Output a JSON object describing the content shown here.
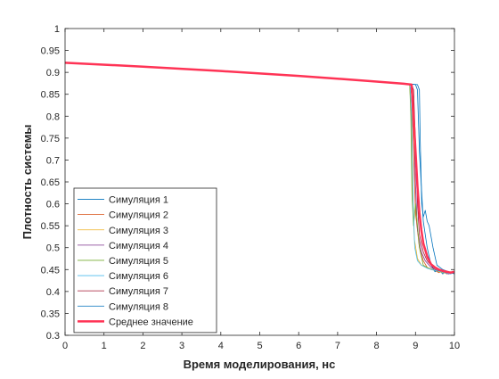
{
  "chart_data": {
    "type": "line",
    "title": "",
    "xlabel": "Время моделирования, нс",
    "ylabel": "Плотность системы",
    "xlim": [
      0,
      10
    ],
    "ylim": [
      0.3,
      1.0
    ],
    "xticks": [
      0,
      1,
      2,
      3,
      4,
      5,
      6,
      7,
      8,
      9,
      10
    ],
    "yticks": [
      0.3,
      0.35,
      0.4,
      0.45,
      0.5,
      0.55,
      0.6,
      0.65,
      0.7,
      0.75,
      0.8,
      0.85,
      0.9,
      0.95,
      1
    ],
    "ytick_labels": [
      "0.3",
      "0.35",
      "0.4",
      "0.45",
      "0.5",
      "0.55",
      "0.6",
      "0.65",
      "0.7",
      "0.75",
      "0.8",
      "0.85",
      "0.9",
      "0.95",
      "1"
    ],
    "grid": false,
    "legend_position": "bottom-left",
    "series": [
      {
        "name": "Симуляция 1",
        "color": "#0072BD",
        "x": [
          0,
          2,
          4,
          6,
          8,
          8.9,
          9.0,
          9.05,
          9.1,
          9.2,
          9.3,
          9.4,
          9.5,
          9.6,
          9.7,
          9.8,
          9.9,
          10
        ],
        "y": [
          0.922,
          0.913,
          0.903,
          0.892,
          0.879,
          0.873,
          0.872,
          0.86,
          0.72,
          0.56,
          0.5,
          0.46,
          0.445,
          0.45,
          0.44,
          0.447,
          0.44,
          0.445
        ]
      },
      {
        "name": "Симуляция 2",
        "color": "#D95319",
        "x": [
          0,
          2,
          4,
          6,
          8,
          8.85,
          8.9,
          8.95,
          9.0,
          9.1,
          9.2,
          9.3,
          9.4,
          9.5,
          9.6,
          9.7,
          9.8,
          9.9,
          10
        ],
        "y": [
          0.922,
          0.913,
          0.903,
          0.892,
          0.879,
          0.873,
          0.85,
          0.72,
          0.58,
          0.5,
          0.47,
          0.455,
          0.45,
          0.448,
          0.443,
          0.447,
          0.44,
          0.445,
          0.442
        ]
      },
      {
        "name": "Симуляция 3",
        "color": "#EDB120",
        "x": [
          0,
          2,
          4,
          6,
          8,
          8.85,
          8.88,
          8.92,
          8.97,
          9.05,
          9.15,
          9.3,
          9.45,
          9.6,
          9.75,
          9.9,
          10
        ],
        "y": [
          0.922,
          0.913,
          0.903,
          0.892,
          0.879,
          0.873,
          0.82,
          0.64,
          0.52,
          0.475,
          0.46,
          0.455,
          0.45,
          0.445,
          0.442,
          0.445,
          0.44
        ]
      },
      {
        "name": "Симуляция 4",
        "color": "#7E2F8E",
        "x": [
          0,
          2,
          4,
          6,
          8,
          8.9,
          8.95,
          9.0,
          9.05,
          9.15,
          9.25,
          9.4,
          9.55,
          9.7,
          9.85,
          10
        ],
        "y": [
          0.922,
          0.913,
          0.903,
          0.892,
          0.879,
          0.873,
          0.8,
          0.64,
          0.54,
          0.49,
          0.47,
          0.455,
          0.448,
          0.445,
          0.44,
          0.443
        ]
      },
      {
        "name": "Симуляция 5",
        "color": "#77AC30",
        "x": [
          0,
          2,
          4,
          6,
          8,
          8.85,
          8.88,
          8.91,
          8.95,
          9.0,
          9.1,
          9.2,
          9.35,
          9.5,
          9.65,
          9.8,
          10
        ],
        "y": [
          0.922,
          0.913,
          0.903,
          0.892,
          0.879,
          0.873,
          0.8,
          0.62,
          0.55,
          0.6,
          0.5,
          0.46,
          0.452,
          0.448,
          0.445,
          0.442,
          0.445
        ]
      },
      {
        "name": "Симуляция 6",
        "color": "#4DBEEE",
        "x": [
          0,
          2,
          4,
          6,
          8,
          8.86,
          8.9,
          8.94,
          8.98,
          9.05,
          9.15,
          9.3,
          9.45,
          9.6,
          9.75,
          9.9,
          10
        ],
        "y": [
          0.922,
          0.913,
          0.903,
          0.892,
          0.879,
          0.873,
          0.8,
          0.6,
          0.5,
          0.47,
          0.46,
          0.453,
          0.449,
          0.446,
          0.443,
          0.44,
          0.444
        ]
      },
      {
        "name": "Симуляция 7",
        "color": "#A2142F",
        "x": [
          0,
          2,
          4,
          6,
          8,
          8.9,
          8.95,
          9.0,
          9.05,
          9.1,
          9.2,
          9.3,
          9.45,
          9.6,
          9.75,
          9.9,
          10
        ],
        "y": [
          0.922,
          0.913,
          0.903,
          0.892,
          0.879,
          0.873,
          0.86,
          0.74,
          0.6,
          0.53,
          0.49,
          0.47,
          0.455,
          0.448,
          0.444,
          0.442,
          0.445
        ]
      },
      {
        "name": "Симуляция 8",
        "color": "#0072BD",
        "x": [
          0,
          2,
          4,
          6,
          8,
          8.9,
          9.05,
          9.1,
          9.12,
          9.16,
          9.2,
          9.25,
          9.3,
          9.35,
          9.45,
          9.55,
          9.7,
          9.85,
          10
        ],
        "y": [
          0.922,
          0.913,
          0.903,
          0.892,
          0.879,
          0.873,
          0.872,
          0.86,
          0.75,
          0.6,
          0.57,
          0.585,
          0.56,
          0.55,
          0.5,
          0.46,
          0.45,
          0.445,
          0.44
        ]
      },
      {
        "name": "Среднее значение",
        "color": "#FF3355",
        "x": [
          0,
          2,
          4,
          6,
          8,
          8.7,
          8.9,
          8.95,
          9.0,
          9.05,
          9.1,
          9.15,
          9.2,
          9.3,
          9.4,
          9.5,
          9.6,
          9.7,
          9.8,
          9.9,
          10
        ],
        "y": [
          0.922,
          0.913,
          0.903,
          0.892,
          0.879,
          0.874,
          0.872,
          0.8,
          0.72,
          0.64,
          0.58,
          0.54,
          0.51,
          0.48,
          0.462,
          0.455,
          0.45,
          0.447,
          0.445,
          0.443,
          0.445
        ]
      }
    ]
  }
}
